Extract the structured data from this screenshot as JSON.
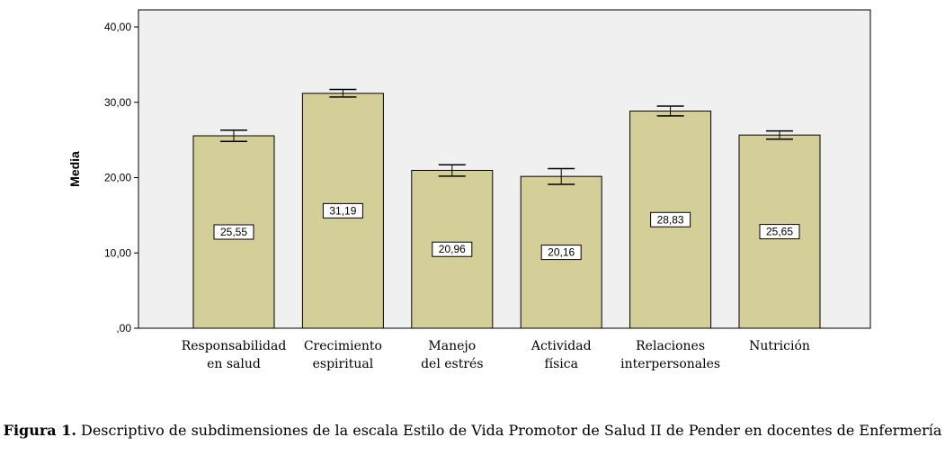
{
  "chart_data": {
    "type": "bar",
    "categories": [
      [
        "Responsabilidad",
        "en salud"
      ],
      [
        "Crecimiento",
        "espiritual"
      ],
      [
        "Manejo",
        "del estrés"
      ],
      [
        "Actividad",
        "física"
      ],
      [
        "Relaciones",
        "interpersonales"
      ],
      [
        "Nutrición"
      ]
    ],
    "values": [
      25.55,
      31.19,
      20.96,
      20.16,
      28.83,
      25.65
    ],
    "value_labels": [
      "25,55",
      "31,19",
      "20,96",
      "20,16",
      "28,83",
      "25,65"
    ],
    "error_bars": [
      [
        24.8,
        26.3
      ],
      [
        30.7,
        31.7
      ],
      [
        20.2,
        21.7
      ],
      [
        19.1,
        21.2
      ],
      [
        28.2,
        29.5
      ],
      [
        25.1,
        26.2
      ]
    ],
    "ylabel": "Media",
    "ylim": [
      0,
      40
    ],
    "yticks": [
      0,
      10,
      20,
      30,
      40
    ],
    "ytick_labels": [
      ",00",
      "10,00",
      "20,00",
      "30,00",
      "40,00"
    ],
    "grid": false,
    "colors": {
      "bar_fill": "#D4CF99",
      "bar_stroke": "#000000",
      "plot_bg": "#F0F0F0"
    }
  },
  "caption": {
    "figure_label": "Figura 1.",
    "text": " Descriptivo de subdimensiones de la escala Estilo de Vida Promotor de Salud II de Pender en docentes de Enfermería"
  }
}
